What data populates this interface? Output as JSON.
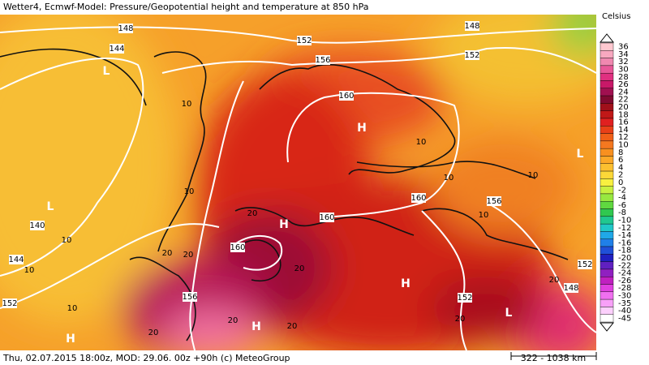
{
  "title": "Wetter4, Ecmwf-Model: Pressure/Geopotential height and temperature at 850 hPa",
  "footer": "Thu, 02.07.2015 18:00z, MOD: 29.06. 00z +90h (c) MeteoGroup",
  "scale": "322 - 1038 km",
  "legend": {
    "title": "Celsius",
    "labels": [
      36,
      34,
      32,
      30,
      28,
      26,
      24,
      22,
      20,
      18,
      16,
      14,
      12,
      10,
      8,
      6,
      4,
      2,
      0,
      -2,
      -4,
      -6,
      -8,
      -10,
      -12,
      -14,
      -16,
      -18,
      -20,
      -22,
      -24,
      -26,
      -28,
      -30,
      -35,
      -40,
      -45
    ],
    "colors": [
      "#ffc8d0",
      "#f8a8c0",
      "#f088b0",
      "#e85898",
      "#e03080",
      "#c81868",
      "#a01050",
      "#800a30",
      "#a0101a",
      "#c01818",
      "#e02020",
      "#e84018",
      "#f06018",
      "#f47820",
      "#f89020",
      "#fca828",
      "#fcc030",
      "#fcd838",
      "#f8f040",
      "#c8f040",
      "#98e840",
      "#60d840",
      "#30c850",
      "#20c890",
      "#20c8c8",
      "#20a8e8",
      "#2080e8",
      "#2050d8",
      "#2020c0",
      "#6020c0",
      "#9020c0",
      "#c020c0",
      "#e040e0",
      "#f070f0",
      "#f8a0f8",
      "#fcd0fc",
      "#ffffff"
    ]
  },
  "contour_labels": [
    148,
    152,
    148,
    152,
    156,
    144,
    160,
    10,
    10,
    10,
    10,
    10,
    160,
    156,
    10,
    160,
    20,
    160,
    20,
    140,
    10,
    144,
    10,
    20,
    20,
    156,
    152,
    10,
    20,
    20,
    20,
    152,
    20,
    20,
    148,
    152
  ],
  "pressure_centers": [
    "H",
    "H",
    "H",
    "H",
    "H",
    "L",
    "L",
    "L",
    "L"
  ]
}
